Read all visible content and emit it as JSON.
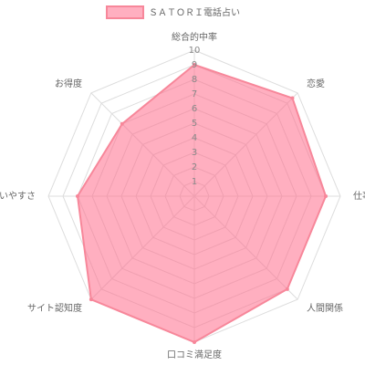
{
  "chart_data": {
    "type": "radar",
    "categories": [
      "総合的中率",
      "恋愛",
      "仕事",
      "人間関係",
      "口コミ満足度",
      "サイト認知度",
      "使いやすさ",
      "お得度"
    ],
    "series": [
      {
        "name": "ＳＡＴＯＲＩ電話占い",
        "color": "#f7879a",
        "fill": "rgba(255,110,140,0.55)",
        "values": [
          9,
          9.5,
          9,
          9,
          10,
          10,
          8,
          7
        ]
      }
    ],
    "rlim": [
      0,
      10
    ],
    "rticks": [
      1,
      2,
      3,
      4,
      5,
      6,
      7,
      8,
      9,
      10
    ],
    "grid": true,
    "legend": "top"
  }
}
